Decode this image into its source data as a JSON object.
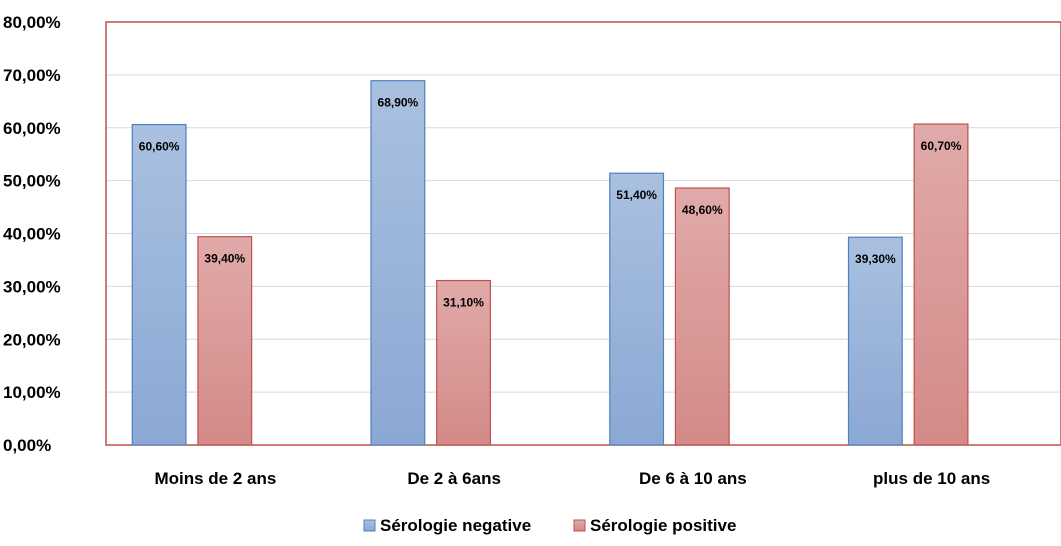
{
  "chart_data": {
    "type": "bar",
    "categories": [
      "Moins de 2 ans",
      "De 2 à 6ans",
      "De 6 à 10 ans",
      "plus de  10 ans"
    ],
    "series": [
      {
        "name": "Sérologie negative",
        "color": "#95B3D7",
        "values": [
          60.6,
          68.9,
          51.4,
          39.3
        ],
        "labels": [
          "60,60%",
          "68,90%",
          "51,40%",
          "39,30%"
        ]
      },
      {
        "name": "Sérologie positive",
        "color": "#DA9694",
        "values": [
          39.4,
          31.1,
          48.6,
          60.7
        ],
        "labels": [
          "39,40%",
          "31,10%",
          "48,60%",
          "60,70%"
        ]
      }
    ],
    "y_ticks": [
      "0,00%",
      "10,00%",
      "20,00%",
      "30,00%",
      "40,00%",
      "50,00%",
      "60,00%",
      "70,00%",
      "80,00%"
    ],
    "ylim": [
      0,
      80
    ],
    "title": "",
    "xlabel": "",
    "ylabel": "",
    "grid": true,
    "legend_position": "bottom"
  }
}
